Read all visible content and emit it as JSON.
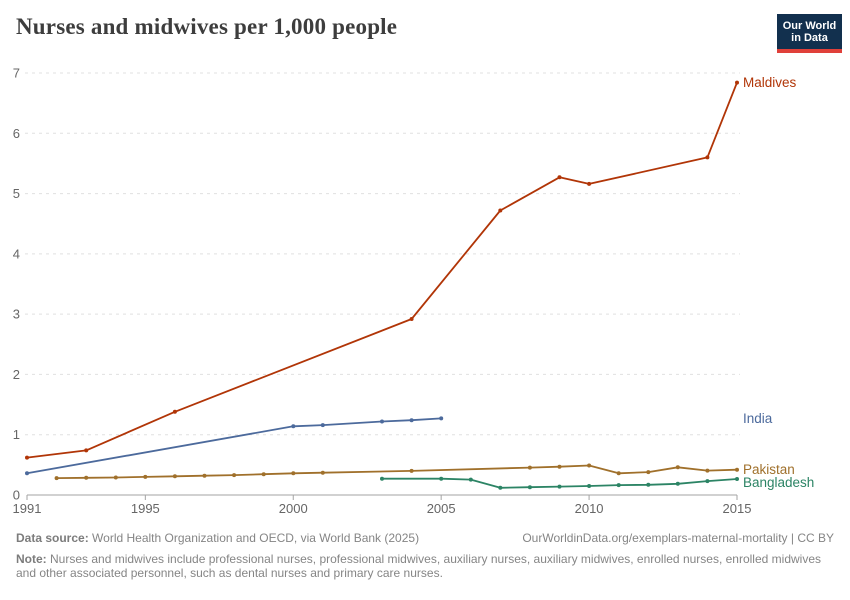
{
  "header": {
    "title": "Nurses and midwives per 1,000 people",
    "logo": {
      "line1": "Our World",
      "line2": "in Data",
      "bg_color": "#12304E",
      "accent_color": "#E0403A"
    }
  },
  "chart_data": {
    "type": "line",
    "title": "Nurses and midwives per 1,000 people",
    "xlabel": "",
    "ylabel": "",
    "xlim": [
      1991,
      2015
    ],
    "ylim": [
      0,
      7
    ],
    "xticks": [
      1991,
      1995,
      2000,
      2005,
      2010,
      2015
    ],
    "yticks": [
      0,
      1,
      2,
      3,
      4,
      5,
      6,
      7
    ],
    "grid": "horizontal-dashed",
    "legend_position": "right-end-labels",
    "series": [
      {
        "name": "Maldives",
        "color": "#B13507",
        "points": [
          [
            1991,
            0.62
          ],
          [
            1993,
            0.74
          ],
          [
            1996,
            1.38
          ],
          [
            2004,
            2.92
          ],
          [
            2007,
            4.72
          ],
          [
            2009,
            5.27
          ],
          [
            2010,
            5.16
          ],
          [
            2014,
            5.6
          ],
          [
            2015,
            6.84
          ]
        ]
      },
      {
        "name": "India",
        "color": "#4C6A9C",
        "points": [
          [
            1991,
            0.36
          ],
          [
            2000,
            1.14
          ],
          [
            2001,
            1.16
          ],
          [
            2003,
            1.22
          ],
          [
            2004,
            1.24
          ],
          [
            2005,
            1.27
          ]
        ]
      },
      {
        "name": "Pakistan",
        "color": "#A0702B",
        "points": [
          [
            1992,
            0.28
          ],
          [
            1993,
            0.285
          ],
          [
            1994,
            0.29
          ],
          [
            1995,
            0.3
          ],
          [
            1996,
            0.31
          ],
          [
            1997,
            0.32
          ],
          [
            1998,
            0.33
          ],
          [
            1999,
            0.345
          ],
          [
            2000,
            0.36
          ],
          [
            2001,
            0.37
          ],
          [
            2004,
            0.4
          ],
          [
            2008,
            0.455
          ],
          [
            2009,
            0.47
          ],
          [
            2010,
            0.49
          ],
          [
            2011,
            0.36
          ],
          [
            2012,
            0.38
          ],
          [
            2013,
            0.46
          ],
          [
            2014,
            0.405
          ],
          [
            2015,
            0.42
          ]
        ]
      },
      {
        "name": "Bangladesh",
        "color": "#2C8465",
        "points": [
          [
            2003,
            0.27
          ],
          [
            2005,
            0.27
          ],
          [
            2006,
            0.255
          ],
          [
            2007,
            0.12
          ],
          [
            2008,
            0.13
          ],
          [
            2009,
            0.14
          ],
          [
            2010,
            0.15
          ],
          [
            2011,
            0.165
          ],
          [
            2012,
            0.17
          ],
          [
            2013,
            0.185
          ],
          [
            2014,
            0.23
          ],
          [
            2015,
            0.265
          ]
        ]
      }
    ]
  },
  "footer": {
    "source_label": "Data source:",
    "source_text": " World Health Organization and OECD, via World Bank (2025)",
    "link_text": "OurWorldinData.org/exemplars-maternal-mortality | CC BY",
    "note_label": "Note:",
    "note_text": " Nurses and midwives include professional nurses, professional midwives, auxiliary nurses, auxiliary midwives, enrolled nurses, enrolled midwives and other associated personnel, such as dental nurses and primary care nurses."
  }
}
